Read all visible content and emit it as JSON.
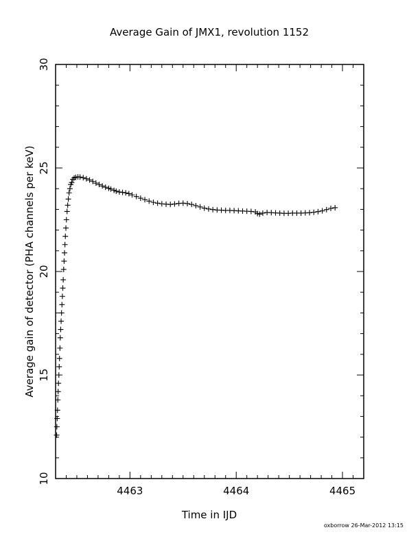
{
  "chart_data": {
    "type": "scatter",
    "title": "Average Gain of JMX1, revolution 1152",
    "xlabel": "Time in IJD",
    "ylabel": "Average gain of detector (PHA channels per keV)",
    "xlim": [
      4462.3,
      4465.2
    ],
    "ylim": [
      10,
      30
    ],
    "x_ticks": [
      4463,
      4464,
      4465
    ],
    "y_ticks": [
      10,
      15,
      20,
      25,
      30
    ],
    "x_minor_step": 0.1,
    "y_minor_step": 1,
    "marker": "plus",
    "grid": false,
    "legend": "none",
    "footer": "oxborrow 26-Mar-2012 13:15",
    "series": [
      {
        "points": [
          [
            4462.31,
            12.1
          ],
          [
            4462.312,
            12.5
          ],
          [
            4462.315,
            12.9
          ],
          [
            4462.318,
            13.3
          ],
          [
            4462.321,
            13.8
          ],
          [
            4462.324,
            14.2
          ],
          [
            4462.327,
            14.6
          ],
          [
            4462.331,
            15.0
          ],
          [
            4462.334,
            15.4
          ],
          [
            4462.337,
            15.8
          ],
          [
            4462.341,
            16.3
          ],
          [
            4462.344,
            16.8
          ],
          [
            4462.348,
            17.2
          ],
          [
            4462.352,
            17.6
          ],
          [
            4462.356,
            18.0
          ],
          [
            4462.36,
            18.4
          ],
          [
            4462.364,
            18.8
          ],
          [
            4462.368,
            19.2
          ],
          [
            4462.372,
            19.6
          ],
          [
            4462.376,
            20.1
          ],
          [
            4462.38,
            20.5
          ],
          [
            4462.384,
            20.9
          ],
          [
            4462.388,
            21.3
          ],
          [
            4462.392,
            21.7
          ],
          [
            4462.397,
            22.1
          ],
          [
            4462.402,
            22.5
          ],
          [
            4462.408,
            22.9
          ],
          [
            4462.414,
            23.2
          ],
          [
            4462.42,
            23.5
          ],
          [
            4462.427,
            23.8
          ],
          [
            4462.435,
            24.0
          ],
          [
            4462.443,
            24.2
          ],
          [
            4462.452,
            24.3
          ],
          [
            4462.462,
            24.45
          ],
          [
            4462.475,
            24.52
          ],
          [
            4462.49,
            24.55
          ],
          [
            4462.51,
            24.57
          ],
          [
            4462.53,
            24.56
          ],
          [
            4462.56,
            24.53
          ],
          [
            4462.59,
            24.48
          ],
          [
            4462.62,
            24.42
          ],
          [
            4462.65,
            24.35
          ],
          [
            4462.68,
            24.27
          ],
          [
            4462.71,
            24.2
          ],
          [
            4462.74,
            24.13
          ],
          [
            4462.77,
            24.07
          ],
          [
            4462.8,
            24.02
          ],
          [
            4462.82,
            23.98
          ],
          [
            4462.85,
            23.92
          ],
          [
            4462.87,
            23.88
          ],
          [
            4462.9,
            23.84
          ],
          [
            4462.93,
            23.82
          ],
          [
            4462.96,
            23.8
          ],
          [
            4462.99,
            23.76
          ],
          [
            4463.02,
            23.7
          ],
          [
            4463.06,
            23.62
          ],
          [
            4463.1,
            23.54
          ],
          [
            4463.14,
            23.47
          ],
          [
            4463.18,
            23.4
          ],
          [
            4463.22,
            23.34
          ],
          [
            4463.26,
            23.3
          ],
          [
            4463.3,
            23.27
          ],
          [
            4463.34,
            23.25
          ],
          [
            4463.38,
            23.24
          ],
          [
            4463.42,
            23.26
          ],
          [
            4463.46,
            23.29
          ],
          [
            4463.5,
            23.3
          ],
          [
            4463.54,
            23.28
          ],
          [
            4463.58,
            23.24
          ],
          [
            4463.62,
            23.18
          ],
          [
            4463.66,
            23.12
          ],
          [
            4463.7,
            23.06
          ],
          [
            4463.74,
            23.02
          ],
          [
            4463.78,
            22.99
          ],
          [
            4463.82,
            22.97
          ],
          [
            4463.86,
            22.96
          ],
          [
            4463.9,
            22.95
          ],
          [
            4463.94,
            22.95
          ],
          [
            4463.98,
            22.94
          ],
          [
            4464.02,
            22.93
          ],
          [
            4464.06,
            22.92
          ],
          [
            4464.1,
            22.91
          ],
          [
            4464.14,
            22.9
          ],
          [
            4464.18,
            22.88
          ],
          [
            4464.2,
            22.8
          ],
          [
            4464.22,
            22.77
          ],
          [
            4464.25,
            22.82
          ],
          [
            4464.29,
            22.85
          ],
          [
            4464.33,
            22.84
          ],
          [
            4464.37,
            22.83
          ],
          [
            4464.41,
            22.82
          ],
          [
            4464.45,
            22.81
          ],
          [
            4464.49,
            22.81
          ],
          [
            4464.53,
            22.82
          ],
          [
            4464.57,
            22.82
          ],
          [
            4464.61,
            22.82
          ],
          [
            4464.65,
            22.83
          ],
          [
            4464.69,
            22.84
          ],
          [
            4464.73,
            22.86
          ],
          [
            4464.77,
            22.89
          ],
          [
            4464.81,
            22.93
          ],
          [
            4464.85,
            22.99
          ],
          [
            4464.89,
            23.05
          ],
          [
            4464.93,
            23.08
          ]
        ]
      }
    ]
  }
}
